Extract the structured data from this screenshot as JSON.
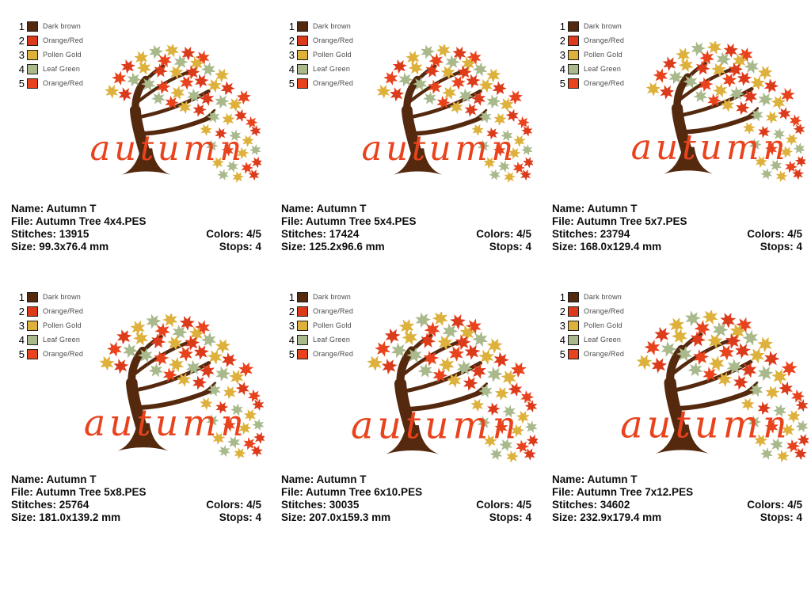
{
  "palette": {
    "dark_brown": "#54290e",
    "orange_red": "#dc3b1b",
    "pollen_gold": "#ddb13c",
    "leaf_green": "#a9b98c",
    "orange_red_2": "#e8431d"
  },
  "legend": {
    "items": [
      {
        "num": "1",
        "label": "Dark brown"
      },
      {
        "num": "2",
        "label": "Orange/Red"
      },
      {
        "num": "3",
        "label": "Pollen Gold"
      },
      {
        "num": "4",
        "label": "Leaf Green"
      },
      {
        "num": "5",
        "label": "Orange/Red"
      }
    ]
  },
  "labels": {
    "name": "Name:",
    "file": "File:",
    "stitches": "Stitches:",
    "size": "Size:",
    "colors": "Colors:",
    "stops": "Stops:"
  },
  "artwork_word": "autumn",
  "designs": [
    {
      "name": "Autumn T",
      "file": "Autumn Tree 4x4.PES",
      "stitches": "13915",
      "size": "99.3x76.4 mm",
      "colors": "4/5",
      "stops": "4"
    },
    {
      "name": "Autumn T",
      "file": "Autumn Tree 5x4.PES",
      "stitches": "17424",
      "size": "125.2x96.6 mm",
      "colors": "4/5",
      "stops": "4"
    },
    {
      "name": "Autumn T",
      "file": "Autumn Tree 5x7.PES",
      "stitches": "23794",
      "size": "168.0x129.4 mm",
      "colors": "4/5",
      "stops": "4"
    },
    {
      "name": "Autumn T",
      "file": "Autumn Tree 5x8.PES",
      "stitches": "25764",
      "size": "181.0x139.2 mm",
      "colors": "4/5",
      "stops": "4"
    },
    {
      "name": "Autumn T",
      "file": "Autumn Tree 6x10.PES",
      "stitches": "30035",
      "size": "207.0x159.3 mm",
      "colors": "4/5",
      "stops": "4"
    },
    {
      "name": "Autumn T",
      "file": "Autumn Tree 7x12.PES",
      "stitches": "34602",
      "size": "232.9x179.4 mm",
      "colors": "4/5",
      "stops": "4"
    }
  ]
}
